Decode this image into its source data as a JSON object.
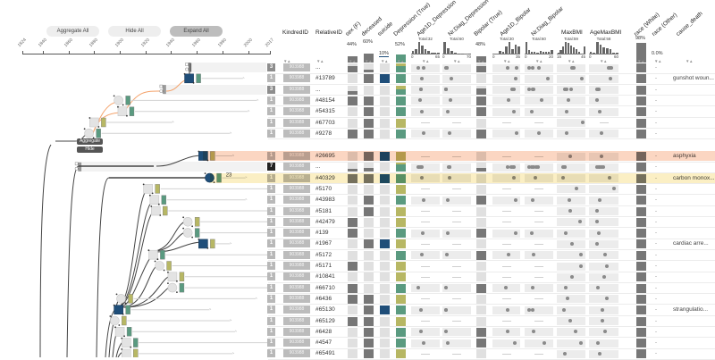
{
  "toolbar": {
    "aggregate_all": "Aggregate All",
    "hide_all": "Hide All",
    "expand_all": "Expand All"
  },
  "timeline": {
    "ticks": [
      "1824",
      "1840",
      "1860",
      "1880",
      "1900",
      "1920",
      "1940",
      "1960",
      "1980",
      "2000",
      "2017"
    ],
    "tick_years": [
      1824,
      1840,
      1860,
      1880,
      1900,
      1920,
      1940,
      1960,
      1980,
      2000,
      2017
    ]
  },
  "tree_popup": {
    "aggregate": "Aggregate",
    "hide": "Hide"
  },
  "colors": {
    "suicide": "#1f4e79",
    "dep_true": "#5a9a80",
    "dep_false": "#b7b764",
    "dark": "#777777",
    "empty": "#e0e0e0",
    "highlight_orange": "#fbd6c2",
    "highlight_yellow": "#fbefc4"
  },
  "columns": {
    "kindred": "KindredID",
    "relative": "RelativeID",
    "sex": {
      "label": "sex (F)",
      "pct": "44%",
      "value": 0.44
    },
    "deceased": {
      "label": "deceased",
      "pct": "60%",
      "value": 0.6
    },
    "suicide": {
      "label": "suicide",
      "pct": "10%",
      "value": 0.1
    },
    "depression": {
      "label": "Depression (True)",
      "pct": "52%",
      "value": 0.52
    },
    "age1d_dep": {
      "label": "Age1D_Depression",
      "total": "Total:32",
      "min": "0",
      "max": "65",
      "range": [
        0,
        65
      ],
      "hist": [
        2,
        4,
        10,
        7,
        4,
        2,
        1,
        1,
        1
      ]
    },
    "nrdiag_dep": {
      "label": "Nr.Diag_Depression",
      "total": "Total:60",
      "min": "0",
      "max": "70",
      "range": [
        0,
        70
      ],
      "hist": [
        33,
        14,
        7,
        3,
        1,
        1,
        0,
        1
      ]
    },
    "bipolar": {
      "label": "Bipolar (True)",
      "pct": "48%",
      "value": 0.48
    },
    "age1d_bip": {
      "label": "Age1D_Bipolar",
      "total": "Total:30",
      "min": "0",
      "max": "35",
      "range": [
        0,
        35
      ],
      "hist": [
        0,
        0,
        2,
        1,
        5,
        8,
        3,
        6,
        5
      ]
    },
    "nrdiag_bip": {
      "label": "Nr.Diag_Bipolar",
      "total": "Total:60",
      "min": "0",
      "max": "20",
      "range": [
        0,
        20
      ],
      "hist": [
        22,
        6,
        4,
        4,
        2,
        5,
        4,
        3,
        4,
        6
      ]
    },
    "maxbmi": {
      "label": "MaxBMI",
      "total": "Total:59",
      "min": "15",
      "max": "45",
      "range": [
        15,
        45
      ],
      "hist": [
        1,
        3,
        7,
        11,
        10,
        8,
        6,
        4,
        2,
        0,
        7
      ]
    },
    "agemaxbmi": {
      "label": "AgeMaxBMI",
      "total": "Total:58",
      "min": "0",
      "max": "60",
      "range": [
        0,
        60
      ],
      "hist": [
        2,
        1,
        17,
        13,
        9,
        8,
        6,
        1,
        1
      ]
    },
    "race_white": {
      "label": "race (White)",
      "pct": "98%",
      "value": 0.98
    },
    "race_other": {
      "label": "race (Other)",
      "pct": "0.0%",
      "value": 0.0
    },
    "cause_death": {
      "label": "cause_death"
    }
  },
  "rows": [
    {
      "count": "3",
      "kindred": "903988",
      "rid": "...",
      "agg": true,
      "birth": 1954,
      "sex": 0.67,
      "dec": 0.33,
      "sui": 0,
      "dep": 0.67,
      "bip": 0.67,
      "race": 1,
      "age1d_dep": [
        15,
        27
      ],
      "nrdiag_dep": [
        5,
        7,
        8
      ],
      "age1d_bip": [
        20,
        32
      ],
      "nrdiag_bip": [
        2,
        5,
        10
      ],
      "maxbmi": [
        31,
        32,
        33
      ],
      "agemaxbmi": [
        42,
        45,
        47
      ],
      "other": "-",
      "cause": ""
    },
    {
      "count": "1",
      "kindred": "903988",
      "rid": "#13789",
      "birth": 1954,
      "death": 1996,
      "shape": "square",
      "sex": 0,
      "dec": 1,
      "sui": 1,
      "dep": 1,
      "bip": 0,
      "race": 1,
      "age1d_dep": [
        23
      ],
      "nrdiag_dep": [
        20
      ],
      "age1d_bip": [
        31
      ],
      "nrdiag_bip": [
        17
      ],
      "maxbmi": [
        43
      ],
      "agemaxbmi": [
        45
      ],
      "other": "-",
      "cause": "gunshot woun..."
    },
    {
      "count": "3",
      "kindred": "903988",
      "rid": "...",
      "agg": true,
      "birth": 1934,
      "sex": 0.33,
      "dec": 0,
      "sui": 0,
      "dep": 0.6,
      "bip": 0.67,
      "race": 1,
      "age1d_dep": [
        20,
        21
      ],
      "nrdiag_dep": [
        4,
        5,
        6
      ],
      "age1d_bip": [
        26,
        28
      ],
      "nrdiag_bip": [
        2,
        5,
        6
      ],
      "maxbmi": [
        23,
        25,
        30
      ],
      "agemaxbmi": [
        15,
        17,
        18
      ],
      "other": "-",
      "cause": ""
    },
    {
      "count": "1",
      "kindred": "903988",
      "rid": "#48154",
      "birth": 1899,
      "death": 2007,
      "shape": "circle",
      "sex": 1,
      "dec": 1,
      "sui": 0,
      "dep": 1,
      "bip": 1,
      "race": 1,
      "age1d_dep": [
        19
      ],
      "nrdiag_dep": [
        17
      ],
      "age1d_bip": [
        21
      ],
      "nrdiag_bip": [
        12
      ],
      "maxbmi": [
        27
      ],
      "agemaxbmi": [
        15
      ],
      "other": "-",
      "cause": ""
    },
    {
      "count": "1",
      "kindred": "903988",
      "rid": "#54315",
      "birth": 1902,
      "death": 2000,
      "shape": "square",
      "sex": 0,
      "dec": 1,
      "sui": 0,
      "dep": 1,
      "bip": 1,
      "race": 1,
      "age1d_dep": [
        23
      ],
      "nrdiag_dep": [
        10
      ],
      "age1d_bip": [
        28
      ],
      "nrdiag_bip": [
        4
      ],
      "maxbmi": [
        25
      ],
      "agemaxbmi": [
        21
      ],
      "other": "-",
      "cause": ""
    },
    {
      "count": "1",
      "kindred": "903988",
      "rid": "#67703",
      "birth": 1880,
      "death": 1941,
      "shape": "square",
      "sex": 0,
      "dec": 1,
      "sui": 0,
      "dep": 0,
      "bip": 0,
      "race": 1,
      "age1d_dep": [],
      "nrdiag_dep": [],
      "age1d_bip": [],
      "nrdiag_bip": [],
      "maxbmi": [
        44
      ],
      "agemaxbmi": [],
      "other": "-",
      "cause": ""
    },
    {
      "count": "1",
      "kindred": "903988",
      "rid": "#9278",
      "birth": 1876,
      "death": 1986,
      "shape": "circle",
      "sex": 1,
      "dec": 1,
      "sui": 0,
      "dep": 1,
      "bip": 1,
      "race": 1,
      "age1d_dep": [
        28
      ],
      "nrdiag_dep": [
        15
      ],
      "age1d_bip": [
        33
      ],
      "nrdiag_bip": [
        10
      ],
      "maxbmi": [
        25
      ],
      "agemaxbmi": [
        25
      ],
      "other": "-",
      "cause": ""
    },
    {
      "count": "1",
      "kindred": "903988",
      "rid": "#26695",
      "birth": 1965,
      "death": 1988,
      "shape": "square",
      "highlight": "orange",
      "sex": 0,
      "dec": 1,
      "sui": 1,
      "dep": 0,
      "bip": 0,
      "race": 1,
      "age1d_dep": [],
      "nrdiag_dep": [],
      "age1d_bip": [],
      "nrdiag_bip": [],
      "maxbmi": [
        29
      ],
      "agemaxbmi": [
        25
      ],
      "other": "-",
      "cause": "asphyxia"
    },
    {
      "count": "7",
      "kindred": "903988",
      "rid": "...",
      "agg": true,
      "dark": true,
      "birth": 1868,
      "sex": 0.3,
      "dec": 0.4,
      "sui": 0,
      "dep": 0.8,
      "bip": 0.4,
      "race": 1,
      "age1d_dep": [
        13,
        17,
        20,
        21,
        23
      ],
      "nrdiag_dep": [
        12,
        14,
        15
      ],
      "age1d_bip": [
        20,
        25,
        27,
        29
      ],
      "nrdiag_bip": [
        2,
        4,
        6,
        8,
        9
      ],
      "maxbmi": [
        20,
        21,
        22,
        23
      ],
      "agemaxbmi": [
        15,
        18,
        20,
        24,
        28
      ],
      "other": "-",
      "cause": ""
    },
    {
      "count": "1",
      "kindred": "903988",
      "rid": "#40329",
      "birth": 1970,
      "death": 1998,
      "shape": "circle",
      "highlight": "yellow",
      "label": "23",
      "sex": 1,
      "dec": 1,
      "sui": 1,
      "dep": 1,
      "bip": 0,
      "race": 1,
      "age1d_dep": [
        23
      ],
      "nrdiag_dep": [
        15
      ],
      "age1d_bip": [
        28
      ],
      "nrdiag_bip": [
        7
      ],
      "maxbmi": [
        20
      ],
      "agemaxbmi": [
        44
      ],
      "other": "-",
      "cause": "carbon monox..."
    },
    {
      "count": "1",
      "kindred": "903988",
      "rid": "#5170",
      "birth": 1922,
      "death": 2016,
      "shape": "square",
      "sex": 0,
      "dec": 0,
      "sui": 0,
      "dep": 0,
      "bip": 0,
      "race": 1,
      "age1d_dep": [],
      "nrdiag_dep": [],
      "age1d_bip": [],
      "nrdiag_bip": [],
      "maxbmi": [
        36
      ],
      "agemaxbmi": [
        53
      ],
      "other": "-",
      "cause": ""
    },
    {
      "count": "1",
      "kindred": "903988",
      "rid": "#43983",
      "birth": 1927,
      "death": 1998,
      "shape": "square",
      "sex": 0,
      "dec": 1,
      "sui": 0,
      "dep": 1,
      "bip": 1,
      "race": 1,
      "age1d_dep": [
        28
      ],
      "nrdiag_dep": [
        10
      ],
      "age1d_bip": [
        31
      ],
      "nrdiag_bip": [
        5
      ],
      "maxbmi": [
        28
      ],
      "agemaxbmi": [
        20
      ],
      "other": "-",
      "cause": ""
    },
    {
      "count": "1",
      "kindred": "903988",
      "rid": "#5181",
      "birth": 1928,
      "death": 2016,
      "shape": "square",
      "sex": 0,
      "dec": 1,
      "sui": 0,
      "dep": 0,
      "bip": 0,
      "race": 1,
      "age1d_dep": [],
      "nrdiag_dep": [],
      "age1d_bip": [],
      "nrdiag_bip": [],
      "maxbmi": [
        29
      ],
      "agemaxbmi": [
        15
      ],
      "other": "-",
      "cause": ""
    },
    {
      "count": "1",
      "kindred": "903988",
      "rid": "#42479",
      "birth": 1953,
      "death": 2016,
      "shape": "circle",
      "sex": 1,
      "dec": 0,
      "sui": 0,
      "dep": 0,
      "bip": 0,
      "race": 1,
      "age1d_dep": [],
      "nrdiag_dep": [],
      "age1d_bip": [],
      "nrdiag_bip": [],
      "maxbmi": [
        41
      ],
      "agemaxbmi": [
        15
      ],
      "other": "-",
      "cause": ""
    },
    {
      "count": "1",
      "kindred": "903988",
      "rid": "#139",
      "birth": 1953,
      "death": 2016,
      "shape": "circle",
      "sex": 1,
      "dec": 0,
      "sui": 0,
      "dep": 1,
      "bip": 1,
      "race": 1,
      "age1d_dep": [
        26
      ],
      "nrdiag_dep": [
        10
      ],
      "age1d_bip": [
        31
      ],
      "nrdiag_bip": [
        4
      ],
      "maxbmi": [
        24
      ],
      "agemaxbmi": [
        18
      ],
      "other": "-",
      "cause": ""
    },
    {
      "count": "1",
      "kindred": "903988",
      "rid": "#1967",
      "birth": 1965,
      "death": 1986,
      "shape": "square",
      "sex": 0,
      "dec": 1,
      "sui": 1,
      "dep": 0,
      "bip": 0,
      "race": 1,
      "age1d_dep": [],
      "nrdiag_dep": [],
      "age1d_bip": [],
      "nrdiag_bip": [],
      "maxbmi": [
        31
      ],
      "agemaxbmi": [
        15
      ],
      "other": "-",
      "cause": "cardiac arre..."
    },
    {
      "count": "1",
      "kindred": "903988",
      "rid": "#5172",
      "birth": 1926,
      "death": 2016,
      "shape": "square",
      "sex": 0,
      "dec": 0,
      "sui": 0,
      "dep": 1,
      "bip": 1,
      "race": 1,
      "age1d_dep": [
        23
      ],
      "nrdiag_dep": [
        8
      ],
      "age1d_bip": [
        21
      ],
      "nrdiag_bip": [
        6
      ],
      "maxbmi": [
        42
      ],
      "agemaxbmi": [
        33
      ],
      "other": "-",
      "cause": ""
    },
    {
      "count": "1",
      "kindred": "903988",
      "rid": "#5171",
      "birth": 1931,
      "death": 2016,
      "shape": "circle",
      "sex": 1,
      "dec": 0,
      "sui": 0,
      "dep": 0,
      "bip": 0,
      "race": 1,
      "age1d_dep": [],
      "nrdiag_dep": [],
      "age1d_bip": [],
      "nrdiag_bip": [],
      "maxbmi": [
        42
      ],
      "agemaxbmi": [
        37
      ],
      "other": "-",
      "cause": ""
    },
    {
      "count": "1",
      "kindred": "903988",
      "rid": "#10841",
      "birth": 1941,
      "death": 2016,
      "shape": "square",
      "sex": 0,
      "dec": 0,
      "sui": 0,
      "dep": 0,
      "bip": 0,
      "race": 1,
      "age1d_dep": [],
      "nrdiag_dep": [],
      "age1d_bip": [],
      "nrdiag_bip": [],
      "maxbmi": [
        31
      ],
      "agemaxbmi": [
        31
      ],
      "other": "-",
      "cause": ""
    },
    {
      "count": "1",
      "kindred": "903988",
      "rid": "#66710",
      "birth": 1941,
      "death": 2016,
      "shape": "circle",
      "sex": 1,
      "dec": 0,
      "sui": 0,
      "dep": 1,
      "bip": 1,
      "race": 1,
      "age1d_dep": [
        15
      ],
      "nrdiag_dep": [
        5
      ],
      "age1d_bip": [
        17
      ],
      "nrdiag_bip": [
        5
      ],
      "maxbmi": [
        24
      ],
      "agemaxbmi": [
        17
      ],
      "other": "-",
      "cause": ""
    },
    {
      "count": "1",
      "kindred": "903988",
      "rid": "#6436",
      "birth": 1901,
      "death": 2006,
      "shape": "circle",
      "sex": 1,
      "dec": 1,
      "sui": 0,
      "dep": 0,
      "bip": 0,
      "race": 1,
      "age1d_dep": [],
      "nrdiag_dep": [],
      "age1d_bip": [],
      "nrdiag_bip": [],
      "maxbmi": [
        26
      ],
      "agemaxbmi": [
        38
      ],
      "other": "-",
      "cause": ""
    },
    {
      "count": "1",
      "kindred": "903988",
      "rid": "#65130",
      "birth": 1899,
      "death": 1970,
      "shape": "square",
      "sex": 0,
      "dec": 1,
      "sui": 1,
      "dep": 1,
      "bip": 0,
      "race": 1,
      "age1d_dep": [
        20
      ],
      "nrdiag_dep": [
        4,
        5
      ],
      "age1d_bip": [
        20
      ],
      "nrdiag_bip": [
        2,
        5
      ],
      "maxbmi": [
        21
      ],
      "agemaxbmi": [
        27
      ],
      "other": "-",
      "cause": "strangulatio..."
    },
    {
      "count": "1",
      "kindred": "903988",
      "rid": "#65129",
      "birth": 1896,
      "death": 1986,
      "shape": "circle",
      "sex": 1,
      "dec": 1,
      "sui": 0,
      "dep": 0,
      "bip": 0,
      "race": 1,
      "age1d_dep": [],
      "nrdiag_dep": [],
      "age1d_bip": [],
      "nrdiag_bip": [],
      "maxbmi": [
        29
      ],
      "agemaxbmi": [
        27
      ],
      "other": "-",
      "cause": ""
    },
    {
      "count": "1",
      "kindred": "903988",
      "rid": "#6428",
      "birth": 1900,
      "death": 1990,
      "shape": "square",
      "sex": 0,
      "dec": 1,
      "sui": 0,
      "dep": 1,
      "bip": 1,
      "race": 1,
      "age1d_dep": [
        20
      ],
      "nrdiag_dep": [
        5
      ],
      "age1d_bip": [
        20
      ],
      "nrdiag_bip": [
        6
      ],
      "maxbmi": [
        35
      ],
      "agemaxbmi": [
        33
      ],
      "other": "-",
      "cause": ""
    },
    {
      "count": "1",
      "kindred": "903988",
      "rid": "#4547",
      "birth": 1905,
      "death": 2016,
      "shape": "square",
      "sex": 0,
      "dec": 1,
      "sui": 0,
      "dep": 1,
      "bip": 1,
      "race": 1,
      "age1d_dep": [
        28
      ],
      "nrdiag_dep": [
        10
      ],
      "age1d_bip": [
        30
      ],
      "nrdiag_bip": [
        14
      ],
      "maxbmi": [
        42
      ],
      "agemaxbmi": [
        17
      ],
      "other": "-",
      "cause": ""
    },
    {
      "count": "1",
      "kindred": "903988",
      "rid": "#65491",
      "birth": 1905,
      "death": 1988,
      "shape": "square",
      "sex": 0,
      "dec": 1,
      "sui": 0,
      "dep": 0,
      "bip": 0,
      "race": 1,
      "age1d_dep": [],
      "nrdiag_dep": [],
      "age1d_bip": [],
      "nrdiag_bip": [],
      "maxbmi": [
        22
      ],
      "agemaxbmi": [
        21
      ],
      "other": "-",
      "cause": ""
    }
  ]
}
